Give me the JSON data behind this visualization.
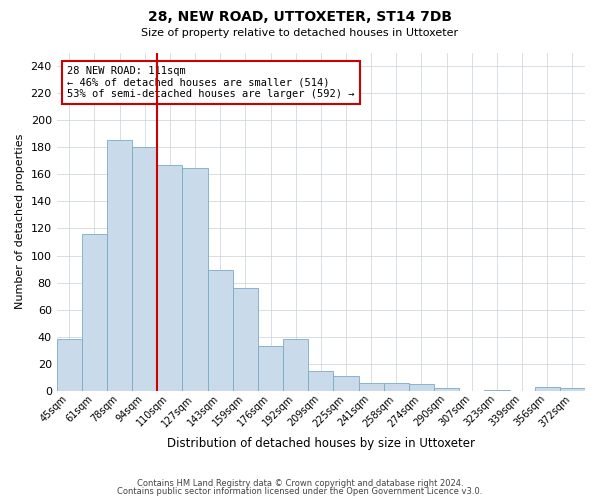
{
  "title": "28, NEW ROAD, UTTOXETER, ST14 7DB",
  "subtitle": "Size of property relative to detached houses in Uttoxeter",
  "xlabel": "Distribution of detached houses by size in Uttoxeter",
  "ylabel": "Number of detached properties",
  "bar_labels": [
    "45sqm",
    "61sqm",
    "78sqm",
    "94sqm",
    "110sqm",
    "127sqm",
    "143sqm",
    "159sqm",
    "176sqm",
    "192sqm",
    "209sqm",
    "225sqm",
    "241sqm",
    "258sqm",
    "274sqm",
    "290sqm",
    "307sqm",
    "323sqm",
    "339sqm",
    "356sqm",
    "372sqm"
  ],
  "bar_values": [
    38,
    116,
    185,
    180,
    167,
    165,
    89,
    76,
    33,
    38,
    15,
    11,
    6,
    6,
    5,
    2,
    0,
    1,
    0,
    3,
    2
  ],
  "bar_color": "#c9daea",
  "bar_edge_color": "#7aaac8",
  "ylim": [
    0,
    250
  ],
  "yticks": [
    0,
    20,
    40,
    60,
    80,
    100,
    120,
    140,
    160,
    180,
    200,
    220,
    240
  ],
  "property_label": "28 NEW ROAD: 111sqm",
  "annotation_line1": "← 46% of detached houses are smaller (514)",
  "annotation_line2": "53% of semi-detached houses are larger (592) →",
  "vline_color": "#cc0000",
  "vline_index": 3.5,
  "annotation_box_color": "#cc0000",
  "footer_line1": "Contains HM Land Registry data © Crown copyright and database right 2024.",
  "footer_line2": "Contains public sector information licensed under the Open Government Licence v3.0.",
  "background_color": "#ffffff",
  "grid_color": "#c8d0d8"
}
